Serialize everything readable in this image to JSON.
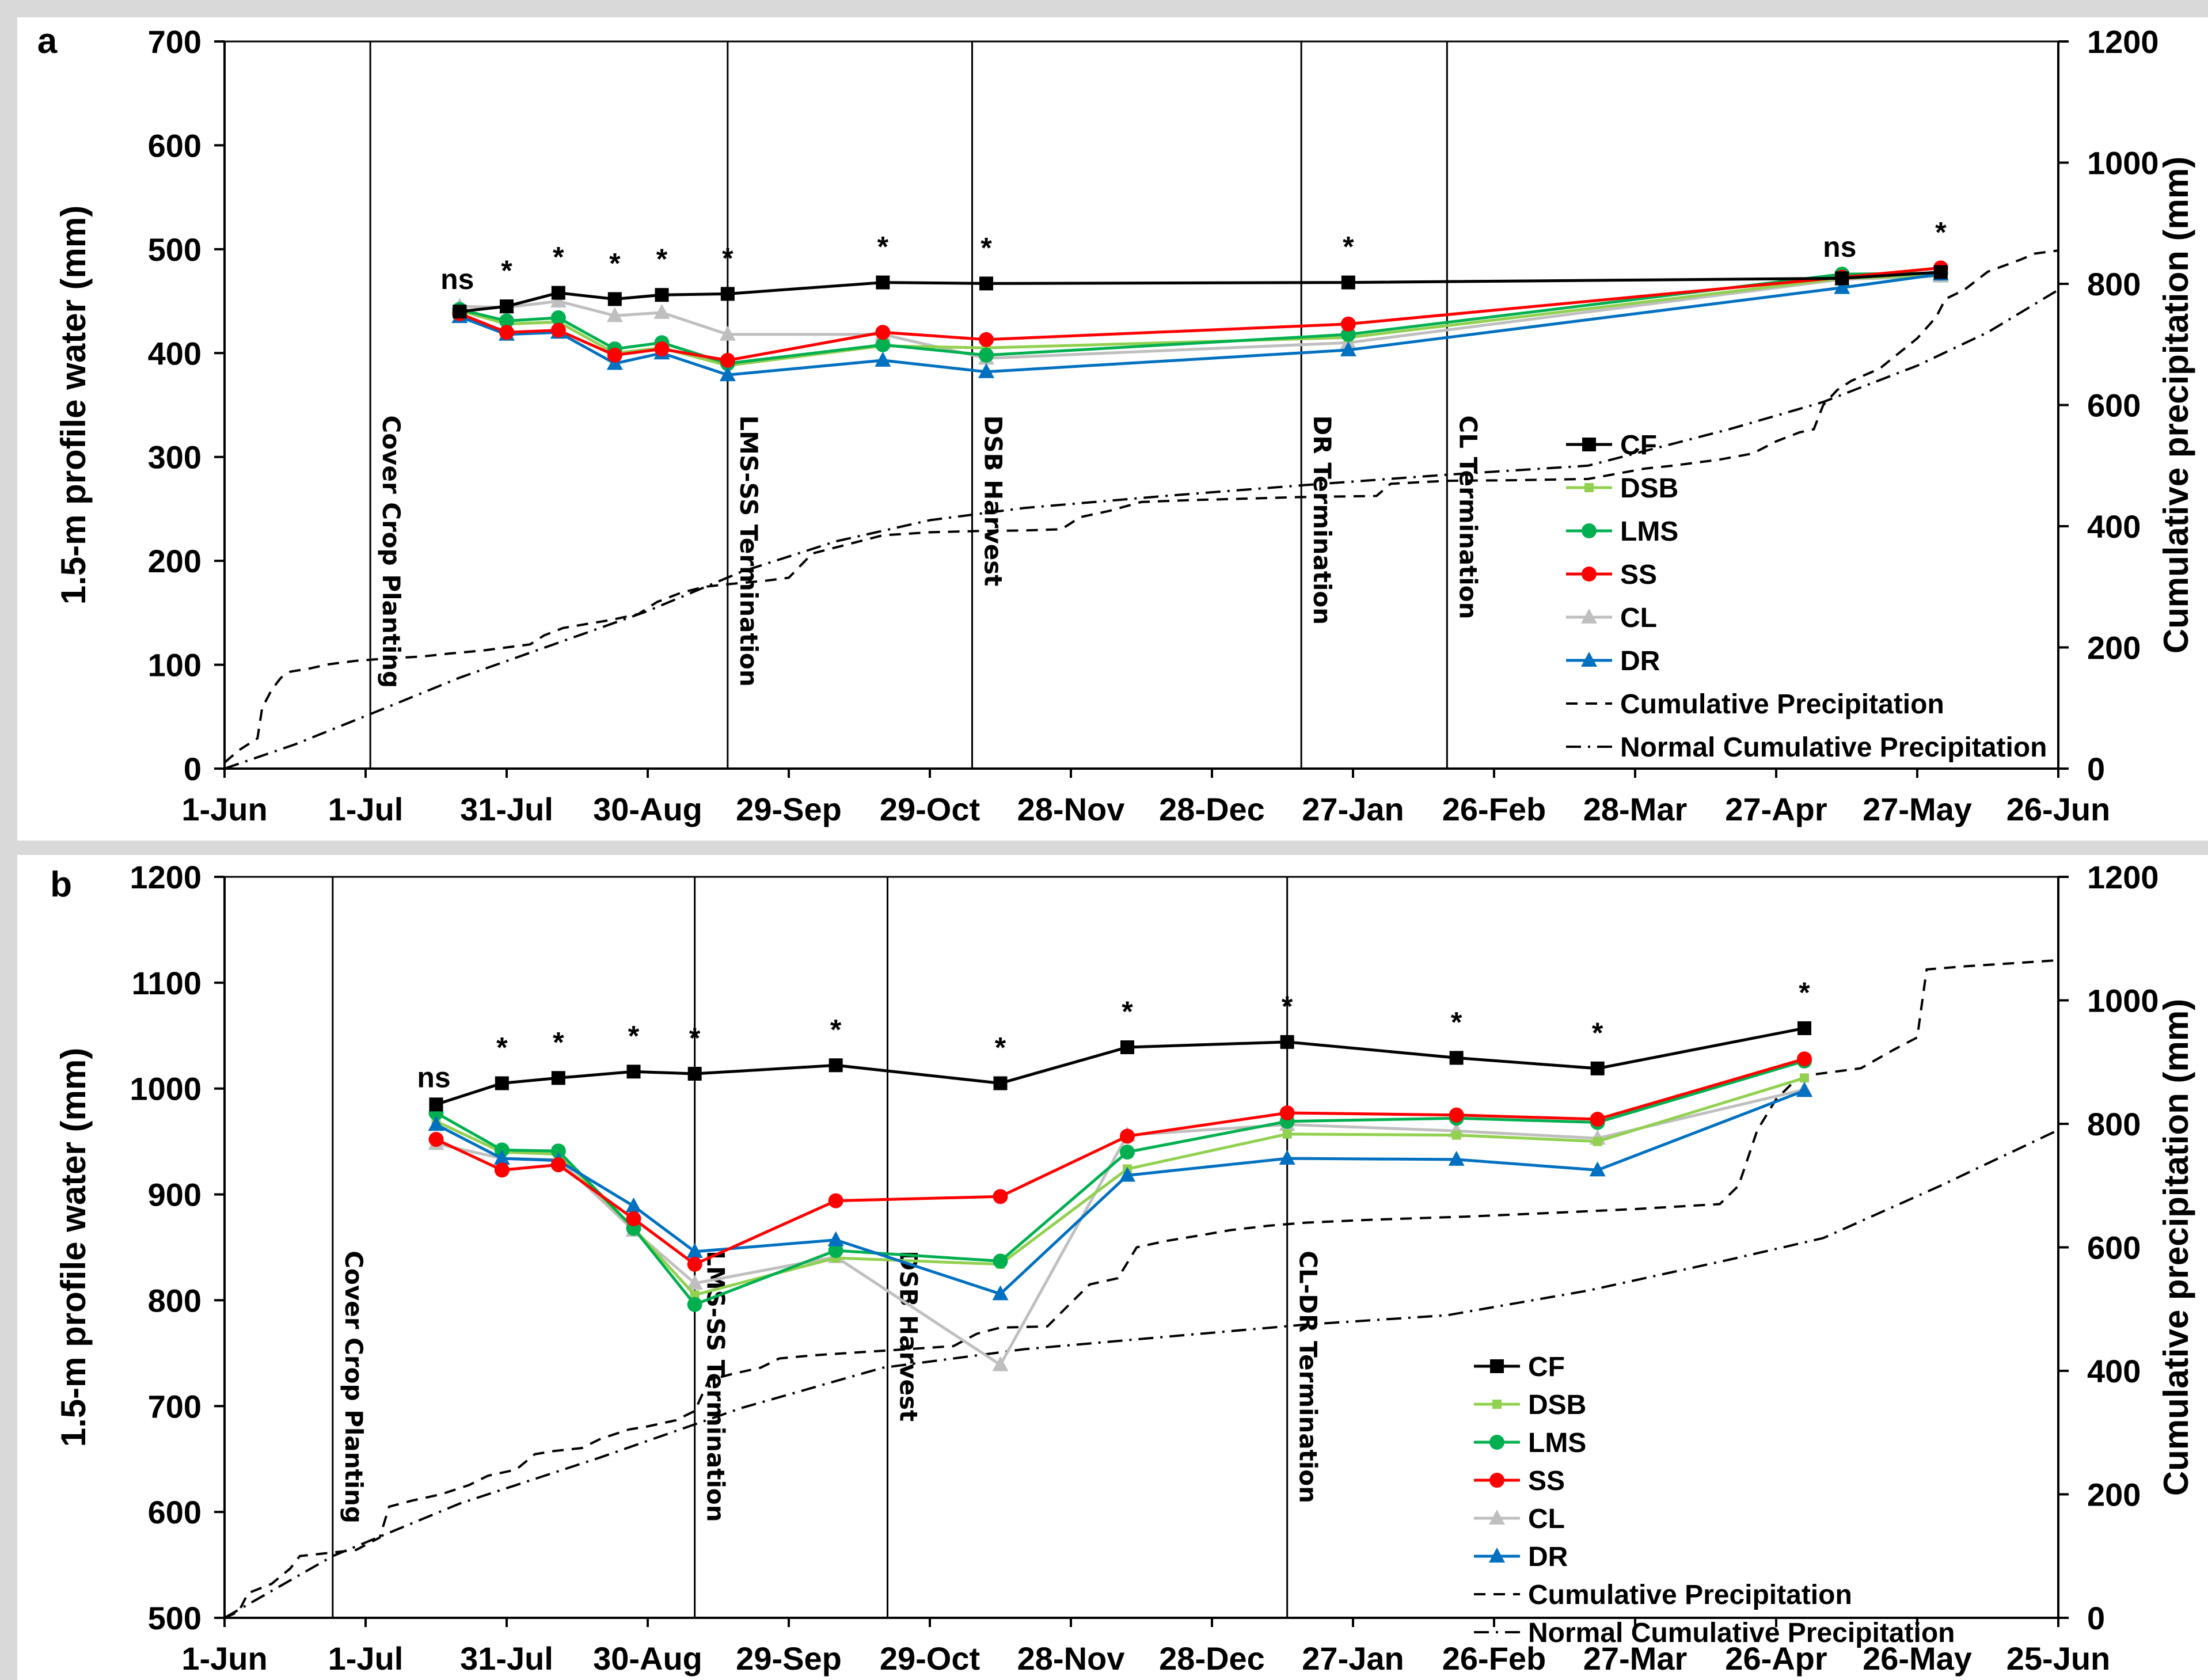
{
  "colors": {
    "CF": "#000000",
    "DSB": "#92d050",
    "LMS": "#00b050",
    "SS": "#ff0000",
    "CL": "#bfbfbf",
    "DR": "#0070c0"
  },
  "chart_data": [
    {
      "type": "line",
      "panel_label": "a",
      "title": "",
      "ylabel": "1.5-m profile water (mm)",
      "y2label": "Cumulative precipitation (mm)",
      "xlabel": "",
      "x_tick_labels": [
        "1-Jun",
        "1-Jul",
        "31-Jul",
        "30-Aug",
        "29-Sep",
        "29-Oct",
        "28-Nov",
        "28-Dec",
        "27-Jan",
        "26-Feb",
        "28-Mar",
        "27-Apr",
        "27-May",
        "26-Jun"
      ],
      "x_range_days": [
        0,
        390
      ],
      "ylim": [
        0,
        700
      ],
      "y_ticks": [
        0,
        100,
        200,
        300,
        400,
        500,
        600,
        700
      ],
      "y2lim": [
        0,
        1200
      ],
      "y2_ticks": [
        0,
        200,
        400,
        600,
        800,
        1000,
        1200
      ],
      "grid": false,
      "legend_position": "lower-right",
      "events": [
        {
          "x": 31,
          "label": "Cover Crop Planting"
        },
        {
          "x": 107,
          "label": "LMS-SS Termination"
        },
        {
          "x": 159,
          "label": "DSB Harvest"
        },
        {
          "x": 229,
          "label": "DR Termination"
        },
        {
          "x": 260,
          "label": "CL Termination"
        }
      ],
      "significance": [
        {
          "x": 50,
          "label": "ns"
        },
        {
          "x": 60,
          "label": "*"
        },
        {
          "x": 71,
          "label": "*"
        },
        {
          "x": 83,
          "label": "*"
        },
        {
          "x": 93,
          "label": "*"
        },
        {
          "x": 107,
          "label": "*"
        },
        {
          "x": 140,
          "label": "*"
        },
        {
          "x": 162,
          "label": "*"
        },
        {
          "x": 239,
          "label": "*"
        },
        {
          "x": 344,
          "label": "ns"
        },
        {
          "x": 365,
          "label": "*"
        }
      ],
      "x": [
        50,
        60,
        71,
        83,
        93,
        107,
        140,
        162,
        239,
        344,
        365
      ],
      "series": [
        {
          "name": "CF",
          "values": [
            440,
            445,
            458,
            452,
            456,
            457,
            468,
            467,
            468,
            472,
            478
          ]
        },
        {
          "name": "DSB",
          "values": [
            441,
            428,
            430,
            400,
            405,
            388,
            407,
            405,
            415,
            472,
            475
          ]
        },
        {
          "name": "LMS",
          "values": [
            442,
            431,
            434,
            404,
            410,
            390,
            408,
            398,
            418,
            476,
            477
          ]
        },
        {
          "name": "SS",
          "values": [
            438,
            420,
            422,
            398,
            404,
            393,
            420,
            413,
            428,
            473,
            482
          ]
        },
        {
          "name": "CL",
          "values": [
            445,
            444,
            450,
            436,
            439,
            418,
            418,
            395,
            410,
            471,
            474
          ]
        },
        {
          "name": "DR",
          "values": [
            435,
            418,
            420,
            390,
            400,
            379,
            393,
            382,
            403,
            463,
            476
          ]
        }
      ],
      "precipitation_series": [
        {
          "name": "Cumulative Precipitation",
          "axis": "right",
          "points": [
            [
              0,
              10
            ],
            [
              3,
              30
            ],
            [
              7,
              50
            ],
            [
              8,
              100
            ],
            [
              10,
              130
            ],
            [
              12,
              150
            ],
            [
              14,
              160
            ],
            [
              18,
              165
            ],
            [
              22,
              172
            ],
            [
              28,
              178
            ],
            [
              35,
              182
            ],
            [
              42,
              185
            ],
            [
              48,
              190
            ],
            [
              55,
              195
            ],
            [
              60,
              200
            ],
            [
              65,
              205
            ],
            [
              68,
              220
            ],
            [
              72,
              232
            ],
            [
              78,
              240
            ],
            [
              82,
              245
            ],
            [
              88,
              255
            ],
            [
              92,
              275
            ],
            [
              97,
              290
            ],
            [
              102,
              300
            ],
            [
              108,
              305
            ],
            [
              115,
              310
            ],
            [
              120,
              315
            ],
            [
              125,
              355
            ],
            [
              130,
              365
            ],
            [
              135,
              375
            ],
            [
              140,
              385
            ],
            [
              150,
              390
            ],
            [
              160,
              392
            ],
            [
              170,
              393
            ],
            [
              178,
              395
            ],
            [
              182,
              415
            ],
            [
              188,
              425
            ],
            [
              195,
              440
            ],
            [
              205,
              443
            ],
            [
              215,
              445
            ],
            [
              228,
              448
            ],
            [
              245,
              450
            ],
            [
              248,
              470
            ],
            [
              260,
              475
            ],
            [
              275,
              476
            ],
            [
              290,
              478
            ],
            [
              295,
              485
            ],
            [
              302,
              495
            ],
            [
              308,
              500
            ],
            [
              318,
              510
            ],
            [
              325,
              520
            ],
            [
              330,
              540
            ],
            [
              335,
              555
            ],
            [
              338,
              560
            ],
            [
              340,
              600
            ],
            [
              343,
              625
            ],
            [
              346,
              640
            ],
            [
              352,
              660
            ],
            [
              356,
              685
            ],
            [
              360,
              710
            ],
            [
              364,
              745
            ],
            [
              366,
              775
            ],
            [
              370,
              790
            ],
            [
              375,
              820
            ],
            [
              382,
              840
            ],
            [
              385,
              850
            ],
            [
              390,
              855
            ]
          ]
        },
        {
          "name": "Normal Cumulative Precipitation",
          "axis": "right",
          "points": [
            [
              0,
              0
            ],
            [
              15,
              40
            ],
            [
              31,
              90
            ],
            [
              50,
              150
            ],
            [
              70,
              205
            ],
            [
              90,
              260
            ],
            [
              110,
              325
            ],
            [
              130,
              375
            ],
            [
              150,
              410
            ],
            [
              170,
              430
            ],
            [
              200,
              450
            ],
            [
              230,
              468
            ],
            [
              260,
              485
            ],
            [
              290,
              500
            ],
            [
              320,
              560
            ],
            [
              340,
              605
            ],
            [
              360,
              665
            ],
            [
              375,
              720
            ],
            [
              390,
              790
            ]
          ]
        }
      ]
    },
    {
      "type": "line",
      "panel_label": "b",
      "title": "",
      "ylabel": "1.5-m profile water (mm)",
      "y2label": "Cumulative precipitation (mm)",
      "xlabel": "",
      "x_tick_labels": [
        "1-Jun",
        "1-Jul",
        "31-Jul",
        "30-Aug",
        "29-Sep",
        "29-Oct",
        "28-Nov",
        "28-Dec",
        "27-Jan",
        "26-Feb",
        "27-Mar",
        "26-Apr",
        "26-May",
        "25-Jun"
      ],
      "x_range_days": [
        0,
        390
      ],
      "ylim": [
        500,
        1200
      ],
      "y_ticks": [
        500,
        600,
        700,
        800,
        900,
        1000,
        1100,
        1200
      ],
      "y2lim": [
        0,
        1200
      ],
      "y2_ticks": [
        0,
        200,
        400,
        600,
        800,
        1000,
        1200
      ],
      "grid": false,
      "legend_position": "lower-right",
      "events": [
        {
          "x": 23,
          "label": "Cover Crop Planting"
        },
        {
          "x": 100,
          "label": "LMS-SS Termination"
        },
        {
          "x": 141,
          "label": "DSB Harvest"
        },
        {
          "x": 226,
          "label": "CL-DR Termination"
        }
      ],
      "significance": [
        {
          "x": 45,
          "label": "ns"
        },
        {
          "x": 59,
          "label": "*"
        },
        {
          "x": 71,
          "label": "*"
        },
        {
          "x": 87,
          "label": "*"
        },
        {
          "x": 100,
          "label": "*"
        },
        {
          "x": 130,
          "label": "*"
        },
        {
          "x": 165,
          "label": "*"
        },
        {
          "x": 192,
          "label": "*"
        },
        {
          "x": 226,
          "label": "*"
        },
        {
          "x": 262,
          "label": "*"
        },
        {
          "x": 292,
          "label": "*"
        },
        {
          "x": 336,
          "label": "*"
        }
      ],
      "x": [
        45,
        59,
        71,
        87,
        100,
        130,
        165,
        192,
        226,
        262,
        292,
        336
      ],
      "series": [
        {
          "name": "CF",
          "values": [
            985,
            1005,
            1010,
            1016,
            1014,
            1022,
            1005,
            1039,
            1044,
            1029,
            1019,
            1057
          ]
        },
        {
          "name": "DSB",
          "values": [
            969,
            940,
            938,
            868,
            805,
            840,
            834,
            924,
            957,
            956,
            950,
            1010
          ]
        },
        {
          "name": "LMS",
          "values": [
            977,
            942,
            941,
            868,
            796,
            847,
            837,
            940,
            969,
            972,
            968,
            1026
          ]
        },
        {
          "name": "SS",
          "values": [
            952,
            923,
            928,
            877,
            834,
            894,
            898,
            955,
            977,
            975,
            971,
            1028
          ]
        },
        {
          "name": "CL",
          "values": [
            948,
            934,
            933,
            866,
            816,
            841,
            739,
            956,
            966,
            960,
            953,
            999
          ]
        },
        {
          "name": "DR",
          "values": [
            966,
            934,
            932,
            889,
            846,
            857,
            806,
            918,
            934,
            933,
            923,
            998
          ]
        }
      ],
      "precipitation_series": [
        {
          "name": "Cumulative Precipitation",
          "axis": "right",
          "points": [
            [
              0,
              0
            ],
            [
              3,
              10
            ],
            [
              5,
              40
            ],
            [
              10,
              55
            ],
            [
              14,
              80
            ],
            [
              16,
              100
            ],
            [
              22,
              105
            ],
            [
              28,
              110
            ],
            [
              33,
              130
            ],
            [
              35,
              180
            ],
            [
              40,
              190
            ],
            [
              46,
              200
            ],
            [
              52,
              215
            ],
            [
              56,
              230
            ],
            [
              62,
              240
            ],
            [
              66,
              265
            ],
            [
              70,
              270
            ],
            [
              76,
              275
            ],
            [
              80,
              290
            ],
            [
              86,
              305
            ],
            [
              90,
              310
            ],
            [
              96,
              320
            ],
            [
              100,
              335
            ],
            [
              103,
              385
            ],
            [
              108,
              395
            ],
            [
              114,
              405
            ],
            [
              118,
              420
            ],
            [
              125,
              425
            ],
            [
              135,
              430
            ],
            [
              145,
              435
            ],
            [
              155,
              440
            ],
            [
              160,
              460
            ],
            [
              165,
              470
            ],
            [
              175,
              472
            ],
            [
              180,
              510
            ],
            [
              184,
              540
            ],
            [
              190,
              550
            ],
            [
              194,
              600
            ],
            [
              200,
              610
            ],
            [
              208,
              620
            ],
            [
              214,
              628
            ],
            [
              222,
              635
            ],
            [
              230,
              640
            ],
            [
              245,
              645
            ],
            [
              265,
              650
            ],
            [
              280,
              655
            ],
            [
              300,
              662
            ],
            [
              318,
              670
            ],
            [
              322,
              700
            ],
            [
              326,
              790
            ],
            [
              330,
              840
            ],
            [
              334,
              870
            ],
            [
              338,
              880
            ],
            [
              348,
              890
            ],
            [
              355,
              920
            ],
            [
              360,
              940
            ],
            [
              362,
              1050
            ],
            [
              370,
              1055
            ],
            [
              380,
              1060
            ],
            [
              390,
              1065
            ]
          ]
        },
        {
          "name": "Normal Cumulative Precipitation",
          "axis": "right",
          "points": [
            [
              0,
              0
            ],
            [
              23,
              100
            ],
            [
              50,
              185
            ],
            [
              80,
              260
            ],
            [
              110,
              340
            ],
            [
              140,
              405
            ],
            [
              170,
              435
            ],
            [
              200,
              455
            ],
            [
              230,
              475
            ],
            [
              260,
              490
            ],
            [
              290,
              530
            ],
            [
              320,
              580
            ],
            [
              340,
              615
            ],
            [
              365,
              700
            ],
            [
              390,
              790
            ]
          ]
        }
      ]
    }
  ]
}
